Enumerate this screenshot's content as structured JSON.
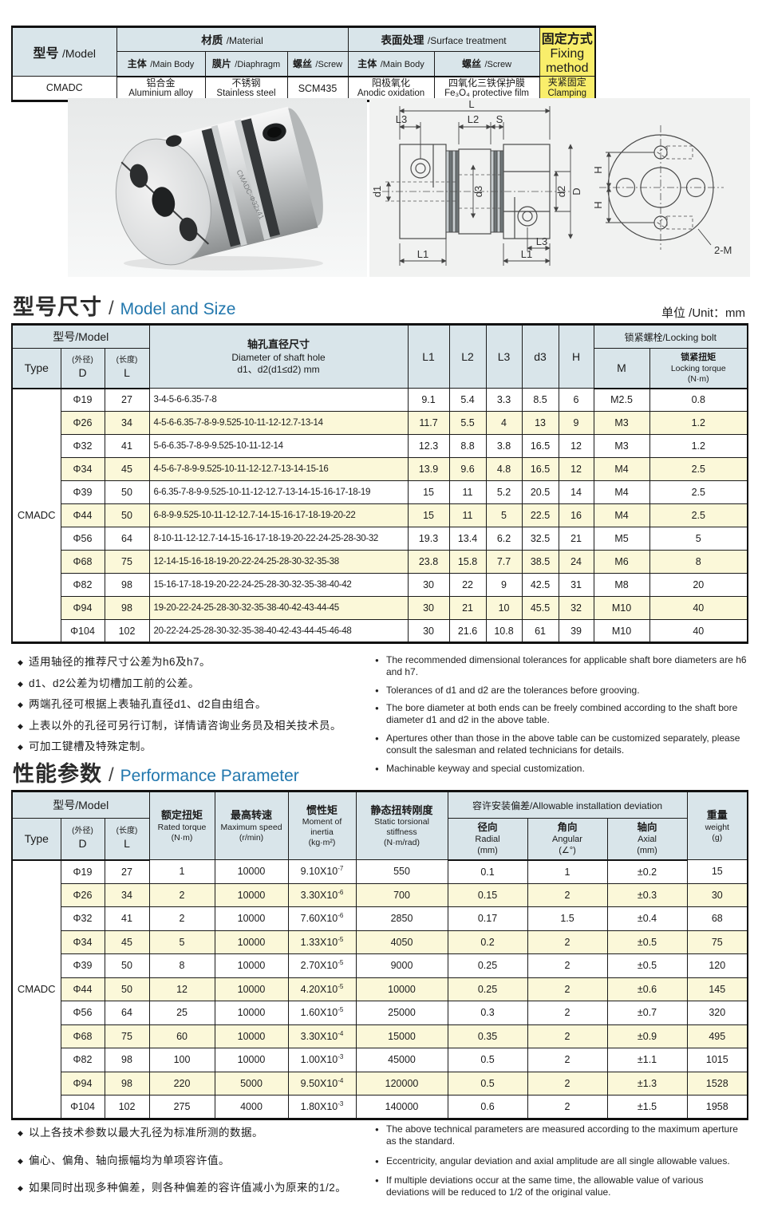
{
  "colors": {
    "accent_blue": "#2277ad",
    "header_bg": "#d9e5ea",
    "highlight_yellow": "#f9ee6b",
    "row_yellow": "#fbf8d9"
  },
  "spec_table": {
    "model_header": {
      "zh": "型号",
      "en": "/Model"
    },
    "material_group": {
      "zh": "材质",
      "en": "/Material"
    },
    "surface_group": {
      "zh": "表面处理",
      "en": "/Surface treatment"
    },
    "fixing_header": {
      "zh": "固定方式",
      "en": "Fixing method"
    },
    "sub": {
      "main_body": {
        "zh": "主体",
        "en": "/Main Body"
      },
      "diaphragm": {
        "zh": "膜片",
        "en": "/Diaphragm"
      },
      "screw": {
        "zh": "螺丝",
        "en": "/Screw"
      },
      "surf_main": {
        "zh": "主体",
        "en": "/Main Body"
      },
      "surf_screw": {
        "zh": "螺丝",
        "en": "/Screw"
      }
    },
    "row": {
      "model": "CMADC",
      "main_body": {
        "zh": "铝合金",
        "en": "Aluminium alloy"
      },
      "diaphragm": {
        "zh": "不锈钢",
        "en": "Stainless steel"
      },
      "screw": "SCM435",
      "surf_main": {
        "zh": "阳极氧化",
        "en": "Anodic oxidation"
      },
      "surf_screw": {
        "zh": "四氧化三铁保护膜",
        "en": "Fe₃O₄ protective film"
      },
      "fixing": {
        "zh": "夹紧固定",
        "en": "Clamping"
      }
    }
  },
  "photo": {
    "engraving": "CMADC-Φ32x41"
  },
  "drawing": {
    "labels": {
      "l": "L",
      "l1": "L1",
      "l2": "L2",
      "l3": "L3",
      "s": "S",
      "d1": "d1",
      "d2": "d2",
      "d3": "d3",
      "big_d": "D",
      "h": "H",
      "bolt": "2-M"
    }
  },
  "sections": {
    "size": {
      "zh": "型号尺寸",
      "sep": "/",
      "en": "Model and Size",
      "unit": "单位 /Unit：mm"
    },
    "perf": {
      "zh": "性能参数",
      "sep": "/",
      "en": "Performance Parameter"
    }
  },
  "size_table": {
    "header": {
      "model_group": "型号/Model",
      "type": "Type",
      "d_sub": "(外径)",
      "d": "D",
      "l_sub": "(长度)",
      "l": "L",
      "shaft_zh": "轴孔直径尺寸",
      "shaft_en": "Diameter of shaft hole",
      "shaft_range": "d1、d2(d1≤d2) mm",
      "l1": "L1",
      "l2": "L2",
      "l3": "L3",
      "d3": "d3",
      "h": "H",
      "lock_group": "锁紧螺栓/Locking bolt",
      "m": "M",
      "torque_zh": "锁紧扭矩",
      "torque_en": "Locking torque",
      "torque_unit": "(N·m)"
    },
    "type_value": "CMADC",
    "rows": [
      [
        "Φ19",
        "27",
        "3-4-5-6-6.35-7-8",
        "9.1",
        "5.4",
        "3.3",
        "8.5",
        "6",
        "M2.5",
        "0.8"
      ],
      [
        "Φ26",
        "34",
        "4-5-6-6.35-7-8-9-9.525-10-11-12-12.7-13-14",
        "11.7",
        "5.5",
        "4",
        "13",
        "9",
        "M3",
        "1.2"
      ],
      [
        "Φ32",
        "41",
        "5-6-6.35-7-8-9-9.525-10-11-12-14",
        "12.3",
        "8.8",
        "3.8",
        "16.5",
        "12",
        "M3",
        "1.2"
      ],
      [
        "Φ34",
        "45",
        "4-5-6-7-8-9-9.525-10-11-12-12.7-13-14-15-16",
        "13.9",
        "9.6",
        "4.8",
        "16.5",
        "12",
        "M4",
        "2.5"
      ],
      [
        "Φ39",
        "50",
        "6-6.35-7-8-9-9.525-10-11-12-12.7-13-14-15-16-17-18-19",
        "15",
        "11",
        "5.2",
        "20.5",
        "14",
        "M4",
        "2.5"
      ],
      [
        "Φ44",
        "50",
        "6-8-9-9.525-10-11-12-12.7-14-15-16-17-18-19-20-22",
        "15",
        "11",
        "5",
        "22.5",
        "16",
        "M4",
        "2.5"
      ],
      [
        "Φ56",
        "64",
        "8-10-11-12-12.7-14-15-16-17-18-19-20-22-24-25-28-30-32",
        "19.3",
        "13.4",
        "6.2",
        "32.5",
        "21",
        "M5",
        "5"
      ],
      [
        "Φ68",
        "75",
        "12-14-15-16-18-19-20-22-24-25-28-30-32-35-38",
        "23.8",
        "15.8",
        "7.7",
        "38.5",
        "24",
        "M6",
        "8"
      ],
      [
        "Φ82",
        "98",
        "15-16-17-18-19-20-22-24-25-28-30-32-35-38-40-42",
        "30",
        "22",
        "9",
        "42.5",
        "31",
        "M8",
        "20"
      ],
      [
        "Φ94",
        "98",
        "19-20-22-24-25-28-30-32-35-38-40-42-43-44-45",
        "30",
        "21",
        "10",
        "45.5",
        "32",
        "M10",
        "40"
      ],
      [
        "Φ104",
        "102",
        "20-22-24-25-28-30-32-35-38-40-42-43-44-45-46-48",
        "30",
        "21.6",
        "10.8",
        "61",
        "39",
        "M10",
        "40"
      ]
    ]
  },
  "notes_size": {
    "zh": [
      "适用轴径的推荐尺寸公差为h6及h7。",
      "d1、d2公差为切槽加工前的公差。",
      "两端孔径可根据上表轴孔直径d1、d2自由组合。",
      "上表以外的孔径可另行订制，详情请咨询业务员及相关技术员。",
      "可加工键槽及特殊定制。"
    ],
    "en": [
      "The recommended dimensional tolerances for applicable shaft bore diameters are h6 and h7.",
      "Tolerances of d1 and d2 are the tolerances before grooving.",
      "The bore diameter at both ends can be freely combined according to the shaft bore diameter d1 and d2 in the above table.",
      "Apertures other than those in the above table can be customized separately, please consult the salesman and related technicians for details.",
      "Machinable keyway and special customization."
    ]
  },
  "perf_table": {
    "header": {
      "model_group": "型号/Model",
      "type": "Type",
      "d_sub": "(外径)",
      "d": "D",
      "l_sub": "(长度)",
      "l": "L",
      "torque": {
        "zh": "额定扭矩",
        "en": "Rated torque",
        "unit": "(N·m)"
      },
      "speed": {
        "zh": "最高转速",
        "en": "Maximum speed",
        "unit": "(r/min)"
      },
      "inertia": {
        "zh": "惯性矩",
        "en": "Moment of inertia",
        "unit": "(kg·m²)"
      },
      "stiffness": {
        "zh": "静态扭转刚度",
        "en": "Static torsional stiffness",
        "unit": "(N·m/rad)"
      },
      "deviation_group": "容许安装偏差/Allowable installation deviation",
      "radial": {
        "zh": "径向",
        "en": "Radial",
        "unit": "(mm)"
      },
      "angular": {
        "zh": "角向",
        "en": "Angular",
        "unit": "(∠°)"
      },
      "axial": {
        "zh": "轴向",
        "en": "Axial",
        "unit": "(mm)"
      },
      "weight": {
        "zh": "重量",
        "en": "weight",
        "unit": "(g)"
      }
    },
    "type_value": "CMADC",
    "rows": [
      [
        "Φ19",
        "27",
        "1",
        "10000",
        "9.10X10^-7",
        "550",
        "0.1",
        "1",
        "±0.2",
        "15"
      ],
      [
        "Φ26",
        "34",
        "2",
        "10000",
        "3.30X10^-6",
        "700",
        "0.15",
        "2",
        "±0.3",
        "30"
      ],
      [
        "Φ32",
        "41",
        "2",
        "10000",
        "7.60X10^-6",
        "2850",
        "0.17",
        "1.5",
        "±0.4",
        "68"
      ],
      [
        "Φ34",
        "45",
        "5",
        "10000",
        "1.33X10^-5",
        "4050",
        "0.2",
        "2",
        "±0.5",
        "75"
      ],
      [
        "Φ39",
        "50",
        "8",
        "10000",
        "2.70X10^-5",
        "9000",
        "0.25",
        "2",
        "±0.5",
        "120"
      ],
      [
        "Φ44",
        "50",
        "12",
        "10000",
        "4.20X10^-5",
        "10000",
        "0.25",
        "2",
        "±0.6",
        "145"
      ],
      [
        "Φ56",
        "64",
        "25",
        "10000",
        "1.60X10^-5",
        "25000",
        "0.3",
        "2",
        "±0.7",
        "320"
      ],
      [
        "Φ68",
        "75",
        "60",
        "10000",
        "3.30X10^-4",
        "15000",
        "0.35",
        "2",
        "±0.9",
        "495"
      ],
      [
        "Φ82",
        "98",
        "100",
        "10000",
        "1.00X10^-3",
        "45000",
        "0.5",
        "2",
        "±1.1",
        "1015"
      ],
      [
        "Φ94",
        "98",
        "220",
        "5000",
        "9.50X10^-4",
        "120000",
        "0.5",
        "2",
        "±1.3",
        "1528"
      ],
      [
        "Φ104",
        "102",
        "275",
        "4000",
        "1.80X10^-3",
        "140000",
        "0.6",
        "2",
        "±1.5",
        "1958"
      ]
    ]
  },
  "notes_perf": {
    "zh": [
      "以上各技术参数以最大孔径为标准所测的数据。",
      "偏心、偏角、轴向振幅均为单项容许值。",
      "如果同时出现多种偏差，则各种偏差的容许值减小为原来的1/2。"
    ],
    "en": [
      "The above technical parameters are measured according to the maximum aperture as the standard.",
      "Eccentricity, angular deviation and axial amplitude are all single allowable values.",
      "If multiple deviations occur at the same time, the allowable value of various deviations will be reduced to 1/2 of the original value."
    ]
  }
}
